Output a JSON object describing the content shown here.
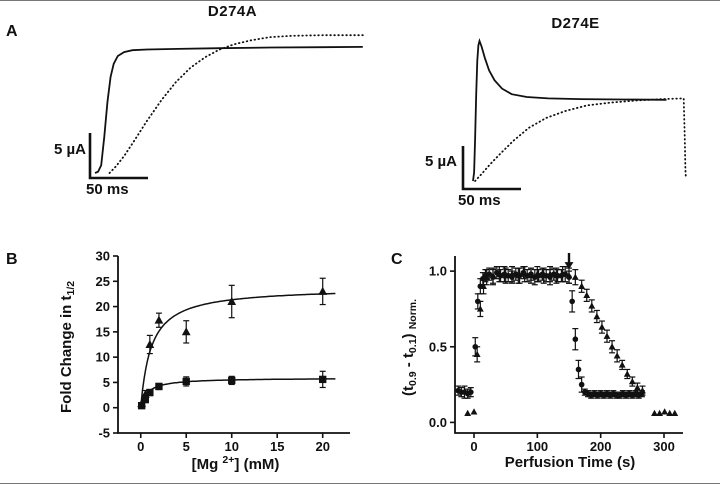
{
  "panels": {
    "a": "A",
    "b": "B",
    "c": "C"
  },
  "chart_data": [
    {
      "id": "trace-d274a",
      "type": "line",
      "title": "D274A",
      "scale_bar": {
        "vertical": "5 µA",
        "horizontal": "50 ms"
      },
      "series": [
        {
          "name": "fast-activating trace (solid)",
          "style": "solid",
          "points": [
            [
              0,
              0
            ],
            [
              3,
              0.01
            ],
            [
              6,
              0.06
            ],
            [
              9,
              0.28
            ],
            [
              12,
              0.55
            ],
            [
              15,
              0.74
            ],
            [
              18,
              0.84
            ],
            [
              22,
              0.9
            ],
            [
              28,
              0.93
            ],
            [
              36,
              0.945
            ],
            [
              50,
              0.95
            ],
            [
              80,
              0.955
            ],
            [
              120,
              0.96
            ],
            [
              170,
              0.965
            ],
            [
              220,
              0.968
            ],
            [
              258,
              0.97
            ]
          ]
        },
        {
          "name": "slow-activating trace (dotted)",
          "style": "dotted",
          "points": [
            [
              14,
              0
            ],
            [
              20,
              0.05
            ],
            [
              28,
              0.13
            ],
            [
              38,
              0.25
            ],
            [
              50,
              0.4
            ],
            [
              64,
              0.56
            ],
            [
              78,
              0.7
            ],
            [
              92,
              0.81
            ],
            [
              106,
              0.89
            ],
            [
              120,
              0.95
            ],
            [
              134,
              0.99
            ],
            [
              150,
              1.02
            ],
            [
              168,
              1.045
            ],
            [
              190,
              1.055
            ],
            [
              220,
              1.06
            ],
            [
              258,
              1.06
            ]
          ]
        }
      ]
    },
    {
      "id": "trace-d274e",
      "type": "line",
      "title": "D274E",
      "scale_bar": {
        "vertical": "5 µA",
        "horizontal": "50 ms"
      },
      "series": [
        {
          "name": "fast trace with peak (solid)",
          "style": "solid",
          "points": [
            [
              0,
              0
            ],
            [
              1,
              0.06
            ],
            [
              2,
              0.3
            ],
            [
              3,
              0.62
            ],
            [
              4,
              0.86
            ],
            [
              5,
              0.97
            ],
            [
              6,
              1
            ],
            [
              8,
              0.96
            ],
            [
              11,
              0.88
            ],
            [
              15,
              0.79
            ],
            [
              20,
              0.72
            ],
            [
              27,
              0.66
            ],
            [
              36,
              0.62
            ],
            [
              50,
              0.6
            ],
            [
              70,
              0.59
            ],
            [
              100,
              0.585
            ],
            [
              140,
              0.582
            ],
            [
              180,
              0.58
            ]
          ]
        },
        {
          "name": "slow trace with deactivation step (dotted)",
          "style": "dotted",
          "points": [
            [
              2,
              0
            ],
            [
              8,
              0.05
            ],
            [
              16,
              0.12
            ],
            [
              26,
              0.2
            ],
            [
              38,
              0.29
            ],
            [
              52,
              0.38
            ],
            [
              68,
              0.45
            ],
            [
              86,
              0.5
            ],
            [
              106,
              0.54
            ],
            [
              128,
              0.56
            ],
            [
              152,
              0.575
            ],
            [
              176,
              0.585
            ],
            [
              196,
              0.59
            ],
            [
              197,
              0.3
            ],
            [
              197.6,
              0.08
            ],
            [
              198,
              0.02
            ]
          ]
        }
      ]
    },
    {
      "id": "panel-b-dose-response",
      "type": "scatter",
      "ylabel_pre": "Fold Change in t",
      "ylabel_sub": "1/2",
      "xlabel_pre": "[Mg ",
      "xlabel_sup": "2+",
      "xlabel_post": "] (mM)",
      "xlim": [
        -2.5,
        23
      ],
      "ylim": [
        -5,
        30
      ],
      "xticks": [
        0,
        5,
        10,
        15,
        20
      ],
      "xtick_labels": [
        "0",
        "5",
        "10",
        "15",
        "20"
      ],
      "yticks": [
        -5,
        0,
        5,
        10,
        15,
        20,
        25,
        30
      ],
      "ytick_labels": [
        "-5",
        "0",
        "5",
        "10",
        "15",
        "20",
        "25",
        "30"
      ],
      "series": [
        {
          "name": "triangles (high fold change)",
          "marker": "triangle",
          "points": [
            [
              0.1,
              0.8,
              0
            ],
            [
              0.5,
              2.6,
              0.8
            ],
            [
              1,
              12.5,
              1.8
            ],
            [
              2,
              17.3,
              1.4
            ],
            [
              5,
              15,
              2.2
            ],
            [
              10,
              21,
              3.2
            ],
            [
              20,
              23,
              2.6
            ]
          ],
          "fit": {
            "vmax": 23.8,
            "km": 1.15
          }
        },
        {
          "name": "squares (low fold change)",
          "marker": "square",
          "points": [
            [
              0.1,
              0.4,
              0
            ],
            [
              0.5,
              1.6,
              0.5
            ],
            [
              1,
              3,
              0.6
            ],
            [
              2,
              4.2,
              0.6
            ],
            [
              5,
              5.2,
              0.9
            ],
            [
              10,
              5.4,
              0.8
            ],
            [
              20,
              5.6,
              1.6
            ]
          ],
          "fit": {
            "vmax": 5.9,
            "km": 0.75
          }
        }
      ]
    },
    {
      "id": "panel-c-perfusion",
      "type": "scatter",
      "ylabel_p1": "(t",
      "ylabel_s1": "0.9",
      "ylabel_p2": " - t",
      "ylabel_s2": "0.1",
      "ylabel_p3": ")",
      "ylabel_s3": "Norm.",
      "xlabel": "Perfusion Time (s)",
      "xlim": [
        -30,
        330
      ],
      "ylim": [
        -0.07,
        1.1
      ],
      "xticks": [
        0,
        100,
        200,
        300
      ],
      "xtick_labels": [
        "0",
        "100",
        "200",
        "300"
      ],
      "yticks": [
        0,
        0.5,
        1
      ],
      "ytick_labels": [
        "0.0",
        "0.5",
        "1.0"
      ],
      "annotation": {
        "x": 150,
        "y_from": 1.12,
        "y_to": 1.02
      },
      "series": [
        {
          "name": "circles (fast washout)",
          "marker": "circle",
          "points": [
            [
              -25,
              0.21,
              0.03
            ],
            [
              -20,
              0.2,
              0.03
            ],
            [
              -15,
              0.2,
              0.04
            ],
            [
              -10,
              0.19,
              0.03
            ],
            [
              -5,
              0.2,
              0.03
            ],
            [
              2,
              0.5,
              0.06
            ],
            [
              6,
              0.8,
              0.05
            ],
            [
              10,
              0.9,
              0.05
            ],
            [
              14,
              0.95,
              0.04
            ],
            [
              18,
              0.97,
              0.04
            ],
            [
              24,
              0.98,
              0.04
            ],
            [
              30,
              0.96,
              0.05
            ],
            [
              36,
              0.99,
              0.04
            ],
            [
              42,
              0.97,
              0.04
            ],
            [
              48,
              0.98,
              0.05
            ],
            [
              54,
              0.97,
              0.04
            ],
            [
              60,
              0.96,
              0.04
            ],
            [
              66,
              0.98,
              0.04
            ],
            [
              72,
              0.97,
              0.05
            ],
            [
              78,
              0.99,
              0.04
            ],
            [
              84,
              0.97,
              0.04
            ],
            [
              90,
              0.98,
              0.04
            ],
            [
              96,
              0.96,
              0.05
            ],
            [
              102,
              0.97,
              0.04
            ],
            [
              108,
              0.98,
              0.04
            ],
            [
              114,
              0.97,
              0.04
            ],
            [
              120,
              0.96,
              0.05
            ],
            [
              126,
              0.98,
              0.04
            ],
            [
              132,
              0.97,
              0.04
            ],
            [
              138,
              0.97,
              0.04
            ],
            [
              144,
              0.98,
              0.05
            ],
            [
              150,
              0.96,
              0.04
            ],
            [
              155,
              0.8,
              0.07
            ],
            [
              160,
              0.55,
              0.07
            ],
            [
              165,
              0.35,
              0.06
            ],
            [
              170,
              0.25,
              0.05
            ],
            [
              175,
              0.2,
              0.02
            ],
            [
              180,
              0.19,
              0.02
            ],
            [
              185,
              0.18,
              0.02
            ],
            [
              190,
              0.19,
              0.02
            ],
            [
              195,
              0.18,
              0.02
            ],
            [
              200,
              0.19,
              0.02
            ],
            [
              205,
              0.18,
              0.02
            ],
            [
              210,
              0.19,
              0.02
            ],
            [
              215,
              0.18,
              0.02
            ],
            [
              220,
              0.19,
              0.02
            ],
            [
              225,
              0.18,
              0.02
            ],
            [
              230,
              0.18,
              0.02
            ],
            [
              235,
              0.19,
              0.02
            ],
            [
              240,
              0.18,
              0.02
            ],
            [
              245,
              0.19,
              0.02
            ],
            [
              250,
              0.18,
              0.02
            ],
            [
              255,
              0.19,
              0.02
            ],
            [
              260,
              0.18,
              0.02
            ],
            [
              265,
              0.19,
              0.02
            ]
          ]
        },
        {
          "name": "triangles (slow washout)",
          "marker": "triangle",
          "points": [
            [
              -10,
              0.06,
              0
            ],
            [
              0,
              0.07,
              0
            ],
            [
              5,
              0.45,
              0.05
            ],
            [
              10,
              0.75,
              0.05
            ],
            [
              15,
              0.9,
              0.05
            ],
            [
              20,
              0.96,
              0.05
            ],
            [
              30,
              0.97,
              0.05
            ],
            [
              40,
              0.98,
              0.05
            ],
            [
              50,
              0.97,
              0.05
            ],
            [
              60,
              0.98,
              0.05
            ],
            [
              70,
              0.97,
              0.05
            ],
            [
              80,
              0.98,
              0.05
            ],
            [
              90,
              0.97,
              0.05
            ],
            [
              100,
              0.98,
              0.05
            ],
            [
              110,
              0.97,
              0.05
            ],
            [
              120,
              0.98,
              0.05
            ],
            [
              130,
              0.97,
              0.05
            ],
            [
              140,
              0.98,
              0.05
            ],
            [
              150,
              0.97,
              0.05
            ],
            [
              160,
              0.96,
              0.05
            ],
            [
              170,
              0.9,
              0.04
            ],
            [
              178,
              0.84,
              0.04
            ],
            [
              186,
              0.77,
              0.04
            ],
            [
              194,
              0.7,
              0.04
            ],
            [
              202,
              0.63,
              0.04
            ],
            [
              210,
              0.57,
              0.04
            ],
            [
              218,
              0.5,
              0.04
            ],
            [
              226,
              0.44,
              0.04
            ],
            [
              234,
              0.38,
              0.03
            ],
            [
              242,
              0.32,
              0.03
            ],
            [
              250,
              0.27,
              0.03
            ],
            [
              258,
              0.23,
              0.03
            ],
            [
              266,
              0.21,
              0.03
            ],
            [
              285,
              0.06,
              0
            ],
            [
              293,
              0.06,
              0
            ],
            [
              301,
              0.07,
              0
            ],
            [
              309,
              0.06,
              0
            ],
            [
              317,
              0.06,
              0
            ]
          ]
        }
      ]
    }
  ]
}
